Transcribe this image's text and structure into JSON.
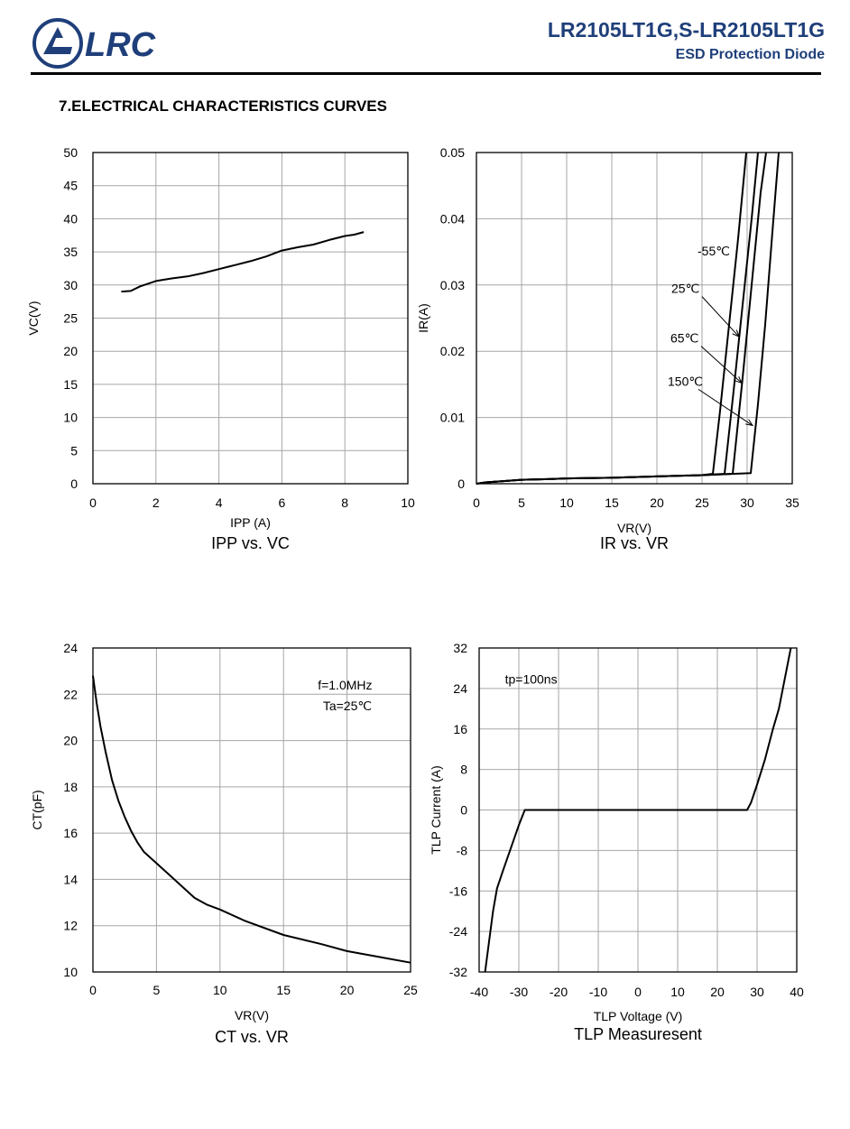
{
  "header": {
    "logo_text": "LRC",
    "part_number": "LR2105LT1G,S-LR2105LT1G",
    "subtitle": "ESD Protection Diode"
  },
  "section_title": "7.ELECTRICAL CHARACTERISTICS CURVES",
  "colors": {
    "brand": "#1f3f7a",
    "grid": "#a6a6a6",
    "line": "#000000"
  },
  "chart_data": [
    {
      "type": "line",
      "caption": "IPP vs. VC",
      "xlabel": "IPP (A)",
      "ylabel": "VC(V)",
      "xlim": [
        0,
        10
      ],
      "ylim": [
        0,
        50
      ],
      "xticks": [
        0,
        2,
        4,
        6,
        8,
        10
      ],
      "yticks": [
        0,
        5,
        10,
        15,
        20,
        25,
        30,
        35,
        40,
        45,
        50
      ],
      "grid": true,
      "series": [
        {
          "x": [
            0.9,
            1.2,
            1.5,
            2.0,
            2.5,
            3.0,
            3.5,
            4.0,
            4.5,
            5.0,
            5.5,
            6.0,
            6.5,
            7.0,
            7.5,
            8.0,
            8.3,
            8.6
          ],
          "y": [
            29.0,
            29.1,
            29.8,
            30.6,
            31.0,
            31.3,
            31.8,
            32.4,
            33.0,
            33.6,
            34.3,
            35.2,
            35.7,
            36.1,
            36.8,
            37.4,
            37.6,
            38.0
          ]
        }
      ],
      "annotations": []
    },
    {
      "type": "line",
      "caption": "IR vs. VR",
      "xlabel": "VR(V)",
      "ylabel": "IR(A)",
      "xlim": [
        0,
        35
      ],
      "ylim": [
        0,
        0.05
      ],
      "xticks": [
        0,
        5,
        10,
        15,
        20,
        25,
        30,
        35
      ],
      "yticks": [
        0,
        0.01,
        0.02,
        0.03,
        0.04,
        0.05
      ],
      "ytick_labels": [
        "0",
        "0.01",
        "0.02",
        "0.03",
        "0.04",
        "0.05"
      ],
      "grid": true,
      "series": [
        {
          "x": [
            0,
            1,
            3,
            5,
            8,
            10,
            15,
            20,
            25,
            26.2,
            27,
            28,
            29,
            29.9
          ],
          "y": [
            0,
            0.0002,
            0.0004,
            0.0006,
            0.0007,
            0.0008,
            0.0009,
            0.0011,
            0.0013,
            0.0015,
            0.011,
            0.024,
            0.037,
            0.05
          ]
        },
        {
          "x": [
            0,
            1,
            3,
            5,
            8,
            10,
            15,
            20,
            25,
            27.5,
            28.5,
            29.5,
            30.5,
            31.2
          ],
          "y": [
            0,
            0.0002,
            0.0004,
            0.0006,
            0.0007,
            0.0008,
            0.0009,
            0.0011,
            0.0013,
            0.0015,
            0.014,
            0.027,
            0.04,
            0.05
          ]
        },
        {
          "x": [
            0,
            1,
            3,
            5,
            8,
            10,
            15,
            20,
            25,
            28.4,
            29.5,
            30.5,
            31.5,
            32.1
          ],
          "y": [
            0,
            0.0002,
            0.0004,
            0.0006,
            0.0007,
            0.0008,
            0.0009,
            0.0011,
            0.0013,
            0.0015,
            0.016,
            0.03,
            0.044,
            0.05
          ]
        },
        {
          "x": [
            0,
            1,
            3,
            5,
            8,
            10,
            15,
            20,
            25,
            30.4,
            31.2,
            32.0,
            32.8,
            33.5
          ],
          "y": [
            0,
            0.0002,
            0.0004,
            0.0006,
            0.0007,
            0.0008,
            0.0009,
            0.0011,
            0.0013,
            0.0016,
            0.012,
            0.024,
            0.038,
            0.05
          ]
        }
      ],
      "annotations": [
        {
          "text": "-55℃",
          "x": 24.5,
          "y": 0.0345,
          "tx": 24.5,
          "ty": 0.0345
        },
        {
          "text": "25℃",
          "x": 21.6,
          "y": 0.0288,
          "tx": 29.1,
          "ty": 0.0222
        },
        {
          "text": "65℃",
          "x": 21.5,
          "y": 0.0213,
          "tx": 29.4,
          "ty": 0.0152
        },
        {
          "text": "150℃",
          "x": 21.2,
          "y": 0.0148,
          "tx": 30.6,
          "ty": 0.0088
        }
      ]
    },
    {
      "type": "line",
      "caption": "CT vs. VR",
      "xlabel": "VR(V)",
      "ylabel": "CT(pF)",
      "xlim": [
        0,
        25
      ],
      "ylim": [
        10,
        24
      ],
      "xticks": [
        0,
        5,
        10,
        15,
        20,
        25
      ],
      "yticks": [
        10,
        12,
        14,
        16,
        18,
        20,
        22,
        24
      ],
      "grid": true,
      "series": [
        {
          "x": [
            0,
            0.3,
            0.6,
            1,
            1.5,
            2,
            2.5,
            3,
            3.5,
            4,
            5,
            6,
            7,
            8,
            9,
            10,
            12,
            15,
            18,
            20,
            22,
            25
          ],
          "y": [
            22.8,
            21.6,
            20.6,
            19.5,
            18.3,
            17.4,
            16.7,
            16.1,
            15.6,
            15.2,
            14.7,
            14.2,
            13.7,
            13.2,
            12.9,
            12.7,
            12.2,
            11.6,
            11.2,
            10.9,
            10.7,
            10.4
          ]
        }
      ],
      "annotations": [
        {
          "text": "f=1.0MHz",
          "x": 17.7,
          "y": 22.2
        },
        {
          "text": "Ta=25℃",
          "x": 18.1,
          "y": 21.3
        }
      ]
    },
    {
      "type": "line",
      "caption": "TLP Measuresent",
      "xlabel": "TLP Voltage (V)",
      "ylabel": "TLP Current (A)",
      "xlim": [
        -40,
        40
      ],
      "ylim": [
        -32,
        32
      ],
      "xticks": [
        -40,
        -30,
        -20,
        -10,
        0,
        10,
        20,
        30,
        40
      ],
      "yticks": [
        -32,
        -24,
        -16,
        -8,
        0,
        8,
        16,
        24,
        32
      ],
      "grid": true,
      "series": [
        {
          "x": [
            -38.5,
            -37.5,
            -36.5,
            -35.5,
            -34,
            -32,
            -30,
            -28.5,
            -27.5,
            -10,
            10,
            27.5,
            28.5,
            30,
            32,
            34,
            35.5,
            37,
            38.5
          ],
          "y": [
            -32,
            -26,
            -20,
            -15.5,
            -12,
            -7.5,
            -3,
            0,
            0,
            0,
            0,
            0,
            1.5,
            5,
            10,
            16,
            20,
            26,
            32
          ]
        }
      ],
      "annotations": [
        {
          "text": "tp=100ns",
          "x": -33.5,
          "y": 25
        }
      ]
    }
  ]
}
